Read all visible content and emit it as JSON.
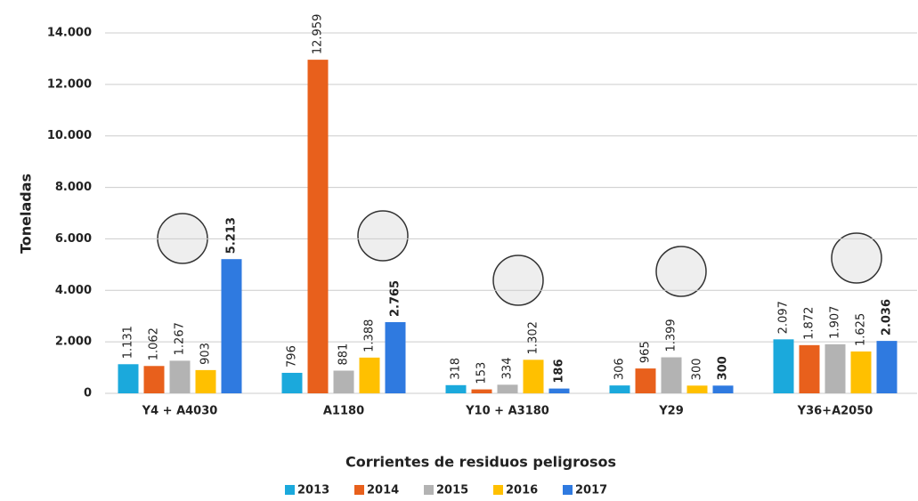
{
  "chart_data": {
    "type": "bar",
    "x_label": "Corrientes de residuos peligrosos",
    "y_label": "Toneladas",
    "categories": [
      "Y4 + A4030",
      "A1180",
      "Y10 + A3180",
      "Y29",
      "Y36+A2050"
    ],
    "series": [
      {
        "name": "2013",
        "color": "#1ba9dc",
        "values": [
          1131,
          796,
          318,
          306,
          2097
        ],
        "value_labels": [
          "1.131",
          "796",
          "318",
          "306",
          "2.097"
        ]
      },
      {
        "name": "2014",
        "color": "#e8601c",
        "values": [
          1062,
          12959,
          153,
          965,
          1872
        ],
        "value_labels": [
          "1.062",
          "12.959",
          "153",
          "965",
          "1.872"
        ]
      },
      {
        "name": "2015",
        "color": "#b3b3b3",
        "values": [
          1267,
          881,
          334,
          1399,
          1907
        ],
        "value_labels": [
          "1.267",
          "881",
          "334",
          "1.399",
          "1.907"
        ]
      },
      {
        "name": "2016",
        "color": "#ffc000",
        "values": [
          903,
          1388,
          1302,
          300,
          1625
        ],
        "value_labels": [
          "903",
          "1.388",
          "1.302",
          "300",
          "1.625"
        ]
      },
      {
        "name": "2017",
        "color": "#2f7ae0",
        "values": [
          5213,
          2765,
          186,
          300,
          2036
        ],
        "value_labels": [
          "5.213",
          "2.765",
          "186",
          "300",
          "2.036"
        ],
        "value_labels_bold": true
      }
    ],
    "ylim": [
      0,
      14000
    ],
    "yticks": [
      0,
      {
        "value": 2000,
        "label": "2.000"
      },
      {
        "value": 4000,
        "label": "4.000"
      },
      {
        "value": 6000,
        "label": "6.000"
      },
      {
        "value": 8000,
        "label": "8.000"
      },
      {
        "value": 10000,
        "label": "10.000"
      },
      {
        "value": 12000,
        "label": "12.000"
      },
      {
        "value": 14000,
        "label": "14.000"
      }
    ],
    "grid": true,
    "legend": "bottom"
  }
}
